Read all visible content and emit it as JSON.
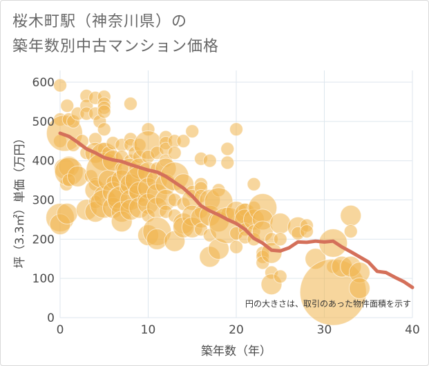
{
  "title_line1": "桜木町駅（神奈川県）の",
  "title_line2": "築年数別中古マンション価格",
  "chart_data": {
    "type": "scatter",
    "title": "桜木町駅（神奈川県）の築年数別中古マンション価格",
    "xlabel": "築年数（年）",
    "ylabel": "坪（3.3㎡）単価（万円）",
    "xlim": [
      0,
      40
    ],
    "ylim": [
      0,
      630
    ],
    "xticks": [
      0,
      10,
      20,
      30,
      40
    ],
    "yticks": [
      0,
      100,
      200,
      300,
      400,
      500,
      600
    ],
    "grid": true,
    "note": "円の大きさは、取引のあった物件面積を示す",
    "colors": {
      "bubble": "#f0b44c",
      "trend": "#d4705a",
      "grid": "#dde6ee"
    },
    "trend": {
      "x": [
        0,
        1,
        2,
        3,
        4,
        5,
        6,
        7,
        8,
        9,
        10,
        11,
        12,
        13,
        14,
        15,
        16,
        17,
        18,
        19,
        20,
        21,
        22,
        23,
        24,
        25,
        26,
        27,
        28,
        29,
        30,
        31,
        32,
        33,
        34,
        35,
        36,
        37,
        38,
        39,
        40
      ],
      "y": [
        470,
        462,
        447,
        430,
        420,
        408,
        402,
        398,
        390,
        383,
        376,
        371,
        360,
        345,
        330,
        310,
        285,
        272,
        262,
        250,
        240,
        225,
        202,
        190,
        172,
        170,
        178,
        193,
        192,
        195,
        193,
        195,
        180,
        168,
        155,
        142,
        118,
        115,
        103,
        92,
        77
      ]
    },
    "points": [
      [
        0,
        592,
        1
      ],
      [
        0,
        505,
        1
      ],
      [
        0,
        450,
        1
      ],
      [
        0,
        255,
        3
      ],
      [
        0,
        238,
        2
      ],
      [
        0.5,
        470,
        4
      ],
      [
        0.5,
        380,
        2
      ],
      [
        0.7,
        340,
        1
      ],
      [
        0.8,
        265,
        2
      ],
      [
        0.8,
        540,
        1
      ],
      [
        1,
        505,
        1
      ],
      [
        1,
        385,
        2
      ],
      [
        1,
        372,
        3
      ],
      [
        1,
        350,
        1
      ],
      [
        1.5,
        500,
        1
      ],
      [
        1.5,
        440,
        1
      ],
      [
        2,
        520,
        1
      ],
      [
        2,
        360,
        2
      ],
      [
        2.5,
        450,
        1
      ],
      [
        3,
        565,
        1
      ],
      [
        3,
        540,
        1
      ],
      [
        3,
        520,
        1
      ],
      [
        3,
        420,
        1
      ],
      [
        3,
        275,
        2
      ],
      [
        3.5,
        360,
        1
      ],
      [
        4,
        560,
        1
      ],
      [
        4,
        520,
        1
      ],
      [
        4,
        455,
        1
      ],
      [
        4,
        420,
        2
      ],
      [
        4,
        340,
        1
      ],
      [
        4,
        325,
        2
      ],
      [
        4,
        295,
        1
      ],
      [
        4,
        270,
        2
      ],
      [
        4.5,
        500,
        1
      ],
      [
        5,
        563,
        1
      ],
      [
        5,
        545,
        1
      ],
      [
        5,
        535,
        1
      ],
      [
        5,
        525,
        1
      ],
      [
        5,
        480,
        1
      ],
      [
        5,
        430,
        1
      ],
      [
        5,
        410,
        3
      ],
      [
        5,
        375,
        4
      ],
      [
        5,
        310,
        2
      ],
      [
        5,
        290,
        3
      ],
      [
        5.5,
        350,
        2
      ],
      [
        5.5,
        420,
        1
      ],
      [
        6,
        445,
        1
      ],
      [
        6,
        400,
        2
      ],
      [
        6,
        345,
        1
      ],
      [
        6,
        320,
        2
      ],
      [
        6,
        280,
        2
      ],
      [
        6.5,
        305,
        2
      ],
      [
        7,
        440,
        1
      ],
      [
        7,
        410,
        1
      ],
      [
        7,
        380,
        1
      ],
      [
        7,
        350,
        2
      ],
      [
        7,
        300,
        3
      ],
      [
        7,
        270,
        2
      ],
      [
        7,
        245,
        2
      ],
      [
        7.5,
        330,
        1
      ],
      [
        8,
        545,
        1
      ],
      [
        8,
        455,
        1
      ],
      [
        8,
        440,
        1
      ],
      [
        8,
        400,
        1
      ],
      [
        8,
        370,
        3
      ],
      [
        8,
        340,
        2
      ],
      [
        8,
        300,
        2
      ],
      [
        8,
        275,
        2
      ],
      [
        8.5,
        420,
        1
      ],
      [
        8.5,
        320,
        1
      ],
      [
        9,
        440,
        1
      ],
      [
        9,
        410,
        1
      ],
      [
        9,
        380,
        2
      ],
      [
        9,
        350,
        3
      ],
      [
        9,
        320,
        2
      ],
      [
        9,
        280,
        2
      ],
      [
        9.5,
        300,
        1
      ],
      [
        10,
        480,
        1
      ],
      [
        10,
        440,
        3
      ],
      [
        10,
        410,
        1
      ],
      [
        10,
        370,
        2
      ],
      [
        10,
        330,
        2
      ],
      [
        10,
        290,
        2
      ],
      [
        10,
        260,
        1
      ],
      [
        10,
        210,
        2
      ],
      [
        11,
        420,
        1
      ],
      [
        11,
        380,
        1
      ],
      [
        11,
        350,
        2
      ],
      [
        11,
        315,
        2
      ],
      [
        11,
        280,
        2
      ],
      [
        11,
        220,
        3
      ],
      [
        11,
        200,
        2
      ],
      [
        12,
        460,
        1
      ],
      [
        12,
        445,
        1
      ],
      [
        12,
        430,
        1
      ],
      [
        12,
        400,
        1
      ],
      [
        12,
        380,
        2
      ],
      [
        12,
        340,
        2
      ],
      [
        12,
        300,
        2
      ],
      [
        12,
        270,
        1
      ],
      [
        13,
        450,
        1
      ],
      [
        13,
        420,
        1
      ],
      [
        13,
        360,
        3
      ],
      [
        13,
        300,
        1
      ],
      [
        13,
        260,
        1
      ],
      [
        13,
        195,
        2
      ],
      [
        14,
        450,
        1
      ],
      [
        14,
        340,
        2
      ],
      [
        14,
        290,
        1
      ],
      [
        14,
        240,
        2
      ],
      [
        14,
        230,
        2
      ],
      [
        15,
        475,
        1
      ],
      [
        15,
        320,
        1
      ],
      [
        15,
        300,
        2
      ],
      [
        15,
        260,
        2
      ],
      [
        15,
        230,
        2
      ],
      [
        16,
        405,
        1
      ],
      [
        16,
        340,
        1
      ],
      [
        16,
        330,
        1
      ],
      [
        16,
        310,
        1
      ],
      [
        16,
        270,
        1
      ],
      [
        16,
        255,
        2
      ],
      [
        16,
        225,
        1
      ],
      [
        17,
        400,
        1
      ],
      [
        17,
        300,
        2
      ],
      [
        17,
        260,
        2
      ],
      [
        17,
        210,
        1
      ],
      [
        17,
        155,
        2
      ],
      [
        18,
        325,
        1
      ],
      [
        18,
        295,
        3
      ],
      [
        18,
        245,
        2
      ],
      [
        18,
        175,
        2
      ],
      [
        19,
        430,
        1
      ],
      [
        19,
        395,
        1
      ],
      [
        19,
        265,
        1
      ],
      [
        19,
        235,
        4
      ],
      [
        20,
        480,
        1
      ],
      [
        20,
        270,
        2
      ],
      [
        20,
        215,
        1
      ],
      [
        20,
        180,
        1
      ],
      [
        21,
        275,
        1
      ],
      [
        21,
        265,
        2
      ],
      [
        21,
        250,
        2
      ],
      [
        21,
        225,
        1
      ],
      [
        21,
        205,
        1
      ],
      [
        22,
        340,
        1
      ],
      [
        22,
        280,
        1
      ],
      [
        22,
        250,
        2
      ],
      [
        22,
        220,
        1
      ],
      [
        22,
        200,
        1
      ],
      [
        23,
        280,
        3
      ],
      [
        23,
        250,
        2
      ],
      [
        23,
        220,
        2
      ],
      [
        23,
        165,
        1
      ],
      [
        23,
        155,
        1
      ],
      [
        23,
        140,
        1
      ],
      [
        24,
        200,
        1
      ],
      [
        24,
        165,
        2
      ],
      [
        24,
        115,
        1
      ],
      [
        24,
        85,
        2
      ],
      [
        25,
        240,
        2
      ],
      [
        25,
        200,
        1
      ],
      [
        25,
        105,
        1
      ],
      [
        27,
        230,
        2
      ],
      [
        27,
        215,
        1
      ],
      [
        28,
        235,
        1
      ],
      [
        28,
        220,
        1
      ],
      [
        29,
        150,
        2
      ],
      [
        31,
        190,
        3
      ],
      [
        31,
        130,
        1
      ],
      [
        31,
        65,
        8
      ],
      [
        32,
        130,
        2
      ],
      [
        33,
        260,
        2
      ],
      [
        33,
        220,
        1
      ],
      [
        33,
        130,
        2
      ],
      [
        34,
        115,
        2
      ],
      [
        34,
        75,
        2
      ]
    ]
  }
}
